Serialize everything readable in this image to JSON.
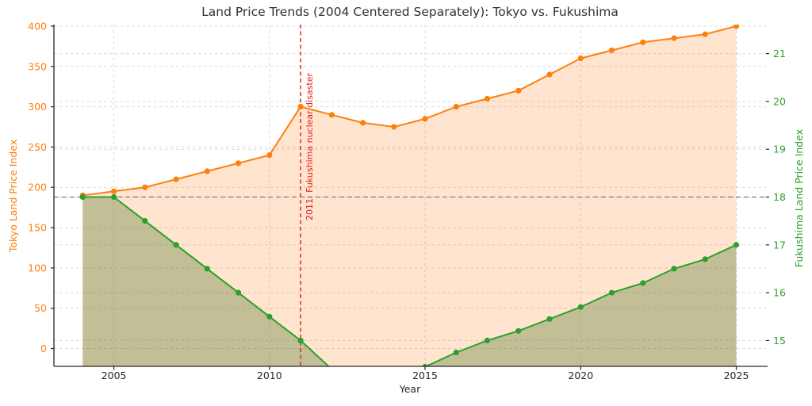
{
  "figure": {
    "title": "Land Price Trends (2004 Centered Separately): Tokyo vs. Fukushima",
    "background": "#ffffff"
  },
  "chart_data": {
    "type": "line",
    "title": "Land Price Trends (2004 Centered Separately): Tokyo vs. Fukushima",
    "xlabel": "Year",
    "legend": false,
    "grid": true,
    "x": [
      2004,
      2005,
      2006,
      2007,
      2008,
      2009,
      2010,
      2011,
      2012,
      2013,
      2014,
      2015,
      2016,
      2017,
      2018,
      2019,
      2020,
      2021,
      2022,
      2023,
      2024,
      2025
    ],
    "series": [
      {
        "name": "Tokyo Land Price Index",
        "axis": "left",
        "color": "#ff7f0e",
        "fill_color": "rgba(255,127,14,0.2)",
        "marker": "circle",
        "values": [
          190,
          195,
          200,
          210,
          220,
          230,
          240,
          300,
          290,
          280,
          275,
          285,
          300,
          310,
          320,
          340,
          360,
          370,
          380,
          385,
          390,
          400
        ]
      },
      {
        "name": "Fukushima Land Price Index",
        "axis": "right",
        "color": "#2ca02c",
        "fill_color": "rgba(70,115,35,0.33)",
        "marker": "circle",
        "values": [
          18.0,
          18.0,
          17.5,
          17.0,
          16.5,
          16.0,
          15.5,
          15.0,
          14.4,
          14.4,
          14.4,
          14.45,
          14.75,
          15.0,
          15.2,
          15.45,
          15.7,
          16.0,
          16.2,
          16.5,
          16.7,
          17.0
        ]
      }
    ],
    "left_axis": {
      "label": "Tokyo Land Price Index",
      "color": "#ff7f0e",
      "ticks": [
        0,
        50,
        100,
        150,
        200,
        250,
        300,
        350,
        400
      ]
    },
    "right_axis": {
      "label": "Fukushima Land Price Index",
      "color": "#2ca02c",
      "ticks": [
        15,
        16,
        17,
        18,
        19,
        20,
        21
      ]
    },
    "x_axis": {
      "label": "Year",
      "color": "#262626",
      "ticks": [
        2005,
        2010,
        2015,
        2020,
        2025
      ]
    },
    "annotation": {
      "text": "2011: Fukushima nuclear disaster",
      "x": 2011,
      "color": "#e31a1a",
      "line_style": "dashed"
    },
    "baseline": {
      "left_value": 190,
      "right_value": 18,
      "color": "#808080",
      "line_style": "dashed"
    },
    "grid_color": "#d9d9d9",
    "spine_color": "#262626"
  }
}
